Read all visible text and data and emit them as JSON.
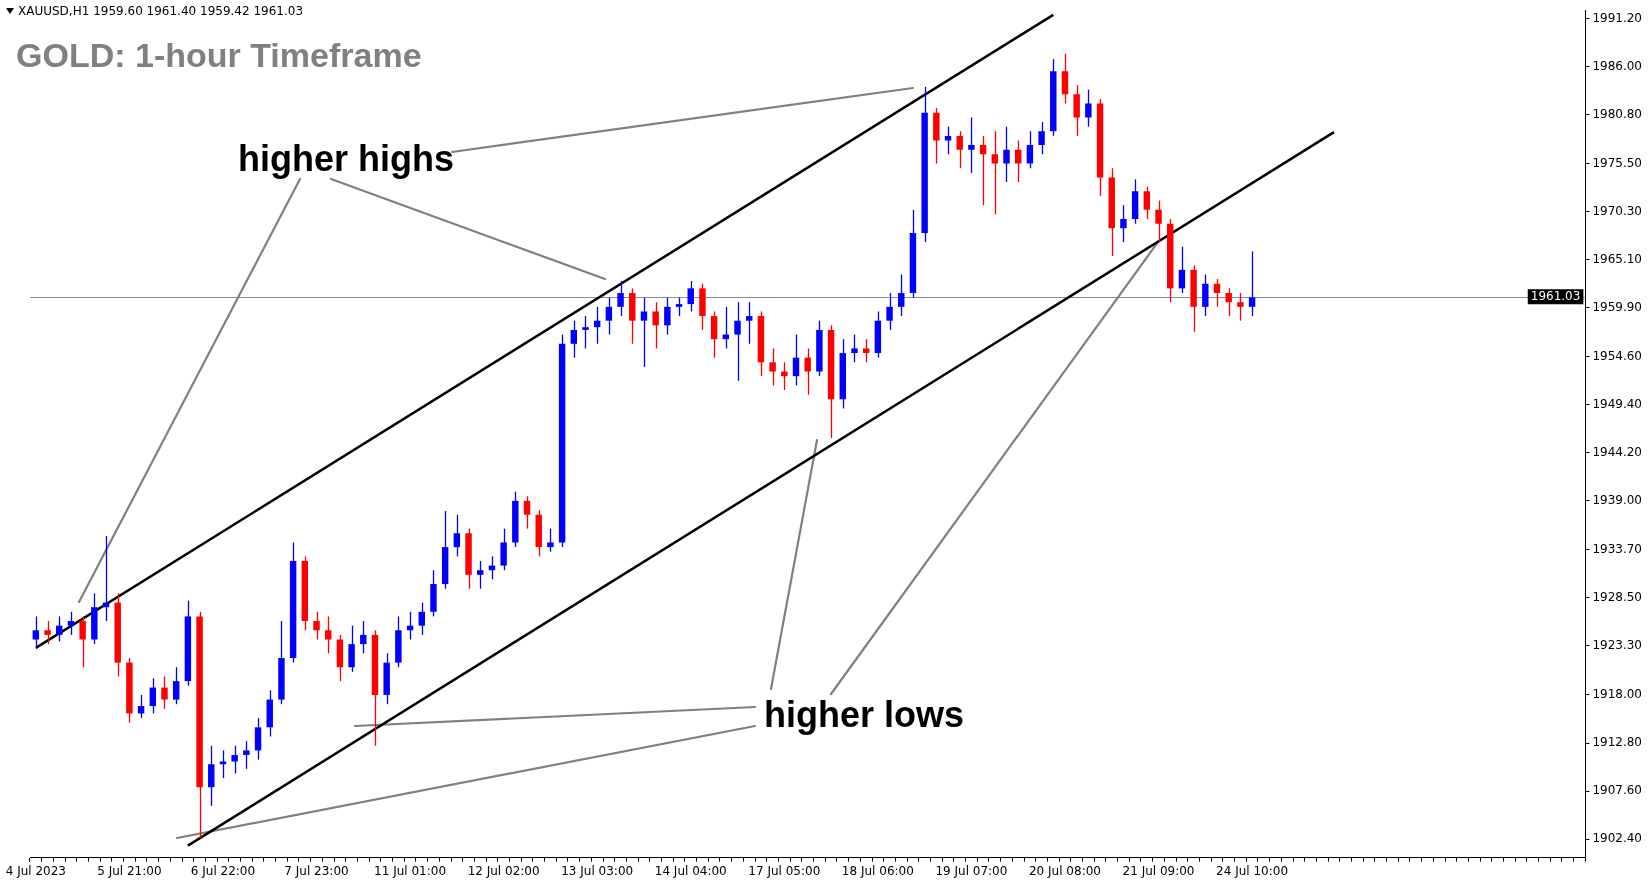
{
  "chart_data": {
    "type": "candlestick",
    "title": "GOLD: 1-hour Timeframe",
    "subtitle": "XAUUSD,H1  1959.60 1961.40 1959.42 1961.03",
    "annotations": [
      "higher highs",
      {
        "text": "higher lows",
        "x": "21 Jul 09:00",
        "y": 1967.1
      }
    ],
    "categories": [
      "4 Jul 2023",
      null,
      null,
      null,
      null,
      null,
      null,
      null,
      "5 Jul 21:00",
      null,
      null,
      null,
      null,
      null,
      null,
      null,
      "6 Jul 22:00",
      null,
      null,
      null,
      null,
      null,
      null,
      null,
      "7 Jul 23:00",
      null,
      null,
      null,
      null,
      null,
      null,
      null,
      "11 Jul 01:00",
      null,
      null,
      null,
      null,
      null,
      null,
      null,
      "12 Jul 02:00",
      null,
      null,
      null,
      null,
      null,
      null,
      null,
      "13 Jul 03:00",
      null,
      null,
      null,
      null,
      null,
      null,
      null,
      "14 Jul 04:00",
      null,
      null,
      null,
      null,
      null,
      null,
      null,
      "17 Jul 05:00",
      null,
      null,
      null,
      null,
      null,
      null,
      null,
      "18 Jul 06:00",
      null,
      null,
      null,
      null,
      null,
      null,
      null,
      "19 Jul 07:00",
      null,
      null,
      null,
      null,
      null,
      null,
      null,
      "20 Jul 08:00",
      null,
      null,
      null,
      null,
      null,
      null,
      null,
      "21 Jul 09:00",
      null,
      null,
      null,
      null,
      null,
      null,
      null,
      "24 Jul 10:00",
      null,
      null,
      null,
      null,
      null,
      null,
      null,
      null,
      null,
      null,
      null,
      null,
      null,
      null,
      null,
      null,
      null,
      null,
      null,
      null,
      null,
      null,
      null,
      null,
      null,
      null,
      null,
      null
    ],
    "ohlc": [
      [
        1924.0,
        1926.5,
        1923.0,
        1925.0
      ],
      [
        1925.0,
        1926.0,
        1923.5,
        1924.5
      ],
      [
        1924.5,
        1926.5,
        1923.8,
        1925.5
      ],
      [
        1925.5,
        1927.0,
        1924.5,
        1926.0
      ],
      [
        1926.0,
        1926.5,
        1921.0,
        1924.0
      ],
      [
        1924.0,
        1929.0,
        1923.5,
        1927.5
      ],
      [
        1927.5,
        1935.2,
        1926.0,
        1928.0
      ],
      [
        1928.0,
        1929.0,
        1920.0,
        1921.5
      ],
      [
        1921.5,
        1922.0,
        1915.0,
        1916.0
      ],
      [
        1916.0,
        1918.0,
        1915.5,
        1916.8
      ],
      [
        1916.8,
        1919.8,
        1916.0,
        1918.8
      ],
      [
        1918.8,
        1920.0,
        1916.5,
        1917.5
      ],
      [
        1917.5,
        1921.0,
        1917.0,
        1919.5
      ],
      [
        1919.5,
        1928.2,
        1919.0,
        1926.5
      ],
      [
        1926.5,
        1927.0,
        1902.5,
        1908.0
      ],
      [
        1908.0,
        1912.5,
        1906.0,
        1910.5
      ],
      [
        1910.5,
        1912.0,
        1909.0,
        1910.8
      ],
      [
        1910.8,
        1912.5,
        1909.5,
        1911.5
      ],
      [
        1911.5,
        1913.0,
        1910.0,
        1912.0
      ],
      [
        1912.0,
        1915.5,
        1911.0,
        1914.5
      ],
      [
        1914.5,
        1918.5,
        1913.5,
        1917.5
      ],
      [
        1917.5,
        1926.0,
        1917.0,
        1922.0
      ],
      [
        1922.0,
        1934.5,
        1921.5,
        1932.5
      ],
      [
        1932.5,
        1933.0,
        1925.0,
        1926.0
      ],
      [
        1926.0,
        1927.0,
        1924.0,
        1925.0
      ],
      [
        1925.0,
        1926.5,
        1922.5,
        1924.0
      ],
      [
        1924.0,
        1924.5,
        1919.5,
        1921.0
      ],
      [
        1921.0,
        1925.5,
        1920.5,
        1923.5
      ],
      [
        1923.5,
        1926.0,
        1922.5,
        1924.5
      ],
      [
        1924.5,
        1925.0,
        1912.5,
        1918.0
      ],
      [
        1918.0,
        1922.5,
        1917.0,
        1921.5
      ],
      [
        1921.5,
        1926.5,
        1921.0,
        1925.0
      ],
      [
        1925.0,
        1927.0,
        1924.0,
        1925.5
      ],
      [
        1925.5,
        1928.0,
        1924.5,
        1927.0
      ],
      [
        1927.0,
        1931.5,
        1926.5,
        1930.0
      ],
      [
        1930.0,
        1937.9,
        1929.5,
        1934.0
      ],
      [
        1934.0,
        1937.5,
        1933.0,
        1935.5
      ],
      [
        1935.5,
        1936.0,
        1929.5,
        1931.0
      ],
      [
        1931.0,
        1932.5,
        1929.5,
        1931.5
      ],
      [
        1931.5,
        1933.0,
        1930.5,
        1932.0
      ],
      [
        1932.0,
        1936.0,
        1931.5,
        1934.5
      ],
      [
        1934.5,
        1940.0,
        1934.0,
        1939.0
      ],
      [
        1939.0,
        1939.5,
        1936.0,
        1937.5
      ],
      [
        1937.5,
        1938.0,
        1933.0,
        1934.0
      ],
      [
        1934.0,
        1936.0,
        1933.5,
        1934.5
      ],
      [
        1934.5,
        1957.0,
        1934.0,
        1956.0
      ],
      [
        1956.0,
        1958.5,
        1954.5,
        1957.5
      ],
      [
        1957.5,
        1959.0,
        1955.5,
        1957.8
      ],
      [
        1957.8,
        1960.0,
        1956.0,
        1958.5
      ],
      [
        1958.5,
        1961.0,
        1957.0,
        1960.0
      ],
      [
        1960.0,
        1962.8,
        1959.0,
        1961.5
      ],
      [
        1961.5,
        1962.0,
        1956.0,
        1958.5
      ],
      [
        1958.5,
        1961.0,
        1953.5,
        1959.5
      ],
      [
        1959.5,
        1960.5,
        1955.5,
        1958.0
      ],
      [
        1958.0,
        1961.0,
        1957.0,
        1960.0
      ],
      [
        1960.0,
        1961.0,
        1959.0,
        1960.3
      ],
      [
        1960.3,
        1962.8,
        1959.5,
        1962.0
      ],
      [
        1962.0,
        1962.5,
        1957.5,
        1959.0
      ],
      [
        1959.0,
        1959.5,
        1954.5,
        1956.5
      ],
      [
        1956.5,
        1960.0,
        1955.5,
        1957.0
      ],
      [
        1957.0,
        1960.5,
        1952.0,
        1958.5
      ],
      [
        1958.5,
        1960.5,
        1956.0,
        1959.0
      ],
      [
        1959.0,
        1959.5,
        1952.5,
        1954.0
      ],
      [
        1954.0,
        1955.5,
        1951.5,
        1953.0
      ],
      [
        1953.0,
        1954.0,
        1951.0,
        1952.5
      ],
      [
        1952.5,
        1957.0,
        1951.5,
        1954.5
      ],
      [
        1954.5,
        1955.5,
        1950.5,
        1953.0
      ],
      [
        1953.0,
        1958.5,
        1952.5,
        1957.5
      ],
      [
        1957.5,
        1958.0,
        1945.8,
        1950.0
      ],
      [
        1950.0,
        1956.5,
        1949.0,
        1955.0
      ],
      [
        1955.0,
        1957.0,
        1954.0,
        1955.5
      ],
      [
        1955.5,
        1956.5,
        1954.0,
        1955.0
      ],
      [
        1955.0,
        1959.5,
        1954.5,
        1958.5
      ],
      [
        1958.5,
        1961.5,
        1957.5,
        1960.0
      ],
      [
        1960.0,
        1963.5,
        1959.0,
        1961.5
      ],
      [
        1961.5,
        1970.5,
        1961.0,
        1968.0
      ],
      [
        1968.0,
        1983.8,
        1967.0,
        1981.0
      ],
      [
        1981.0,
        1981.5,
        1975.5,
        1978.0
      ],
      [
        1978.0,
        1979.5,
        1976.5,
        1978.5
      ],
      [
        1978.5,
        1979.0,
        1975.0,
        1977.0
      ],
      [
        1977.0,
        1980.5,
        1974.5,
        1977.5
      ],
      [
        1977.5,
        1978.5,
        1971.0,
        1976.5
      ],
      [
        1976.5,
        1979.0,
        1970.0,
        1975.5
      ],
      [
        1975.5,
        1979.5,
        1973.5,
        1977.0
      ],
      [
        1977.0,
        1978.0,
        1973.5,
        1975.5
      ],
      [
        1975.5,
        1979.0,
        1975.0,
        1977.5
      ],
      [
        1977.5,
        1980.0,
        1976.5,
        1979.0
      ],
      [
        1979.0,
        1986.8,
        1978.5,
        1985.5
      ],
      [
        1985.5,
        1987.4,
        1982.0,
        1983.0
      ],
      [
        1983.0,
        1984.0,
        1978.5,
        1980.5
      ],
      [
        1980.5,
        1983.5,
        1979.5,
        1982.0
      ],
      [
        1982.0,
        1982.5,
        1972.0,
        1974.0
      ],
      [
        1974.0,
        1975.0,
        1965.5,
        1968.5
      ],
      [
        1968.5,
        1971.0,
        1967.0,
        1969.5
      ],
      [
        1969.5,
        1973.8,
        1969.0,
        1972.5
      ],
      [
        1972.5,
        1973.0,
        1969.5,
        1970.5
      ],
      [
        1970.5,
        1971.5,
        1967.0,
        1969.0
      ],
      [
        1969.0,
        1969.5,
        1960.5,
        1962.0
      ],
      [
        1962.0,
        1966.5,
        1961.5,
        1964.0
      ],
      [
        1964.0,
        1964.5,
        1957.3,
        1960.0
      ],
      [
        1960.0,
        1963.5,
        1959.0,
        1962.5
      ],
      [
        1962.5,
        1963.0,
        1960.0,
        1961.5
      ],
      [
        1961.5,
        1962.0,
        1959.0,
        1960.5
      ],
      [
        1960.5,
        1961.5,
        1958.5,
        1960.0
      ],
      [
        1960.0,
        1966.0,
        1959.0,
        1961.03
      ],
      null,
      null,
      null,
      null,
      null,
      null,
      null,
      null,
      null,
      null,
      null,
      null,
      null,
      null,
      null,
      null,
      null,
      null,
      null,
      null,
      null,
      null,
      null,
      null,
      null,
      null,
      null,
      null
    ],
    "colors": [
      "#0000ff",
      "#ff0000",
      "#0000ff",
      "#0000ff",
      "#ff0000",
      "#0000ff",
      "#0000ff",
      "#ff0000",
      "#ff0000",
      "#0000ff",
      "#0000ff",
      "#ff0000",
      "#0000ff",
      "#0000ff",
      "#ff0000",
      "#0000ff",
      "#0000ff",
      "#0000ff",
      "#0000ff",
      "#0000ff",
      "#0000ff",
      "#0000ff",
      "#0000ff",
      "#ff0000",
      "#ff0000",
      "#ff0000",
      "#ff0000",
      "#0000ff",
      "#0000ff",
      "#ff0000",
      "#0000ff",
      "#0000ff",
      "#0000ff",
      "#0000ff",
      "#0000ff",
      "#0000ff",
      "#0000ff",
      "#ff0000",
      "#0000ff",
      "#0000ff",
      "#0000ff",
      "#0000ff",
      "#ff0000",
      "#ff0000",
      "#0000ff",
      "#0000ff",
      "#0000ff",
      "#0000ff",
      "#0000ff",
      "#0000ff",
      "#0000ff",
      "#ff0000",
      "#0000ff",
      "#ff0000",
      "#0000ff",
      "#0000ff",
      "#0000ff",
      "#ff0000",
      "#ff0000",
      "#0000ff",
      "#0000ff",
      "#0000ff",
      "#ff0000",
      "#ff0000",
      "#ff0000",
      "#0000ff",
      "#ff0000",
      "#0000ff",
      "#ff0000",
      "#0000ff",
      "#0000ff",
      "#ff0000",
      "#0000ff",
      "#0000ff",
      "#0000ff",
      "#0000ff",
      "#0000ff",
      "#ff0000",
      "#0000ff",
      "#ff0000",
      "#0000ff",
      "#ff0000",
      "#ff0000",
      "#0000ff",
      "#ff0000",
      "#0000ff",
      "#0000ff",
      "#0000ff",
      "#ff0000",
      "#ff0000",
      "#0000ff",
      "#ff0000",
      "#ff0000",
      "#0000ff",
      "#0000ff",
      "#ff0000",
      "#ff0000",
      "#ff0000",
      "#0000ff",
      "#ff0000",
      "#0000ff",
      "#ff0000",
      "#ff0000",
      "#ff0000",
      "#0000ff",
      null,
      null,
      null,
      null,
      null,
      null,
      null,
      null,
      null,
      null,
      null,
      null,
      null,
      null,
      null,
      null,
      null,
      null,
      null,
      null,
      null,
      null,
      null,
      null,
      null,
      null,
      null,
      null
    ],
    "series": [
      {
        "type": "line",
        "color": "#000000",
        "values": [
          1923.1,
          null,
          null,
          null,
          null,
          null,
          null,
          null,
          null,
          null,
          null,
          null,
          null,
          null,
          null,
          null,
          null,
          null,
          null,
          null,
          null,
          null,
          null,
          null,
          null,
          null,
          null,
          null,
          null,
          null,
          null,
          null,
          null,
          null,
          null,
          null,
          null,
          null,
          null,
          null,
          null,
          null,
          null,
          null,
          null,
          null,
          null,
          null,
          null,
          null,
          null,
          null,
          null,
          null,
          null,
          null,
          null,
          null,
          null,
          null,
          null,
          null,
          null,
          null,
          null,
          null,
          null,
          null,
          null,
          null,
          null,
          null,
          null,
          null,
          null,
          null,
          null,
          null,
          null,
          null,
          null,
          null,
          null,
          null,
          null,
          null,
          null,
          1991.6,
          null,
          null,
          null,
          null,
          null,
          null,
          null,
          null,
          null,
          null,
          null,
          null,
          null,
          null,
          null,
          null,
          null,
          null,
          null,
          null,
          null,
          null,
          null,
          null,
          null,
          null,
          null,
          null,
          null,
          null,
          null,
          null,
          null,
          null,
          null,
          null,
          null,
          null,
          null,
          null,
          null,
          null,
          null,
          null,
          null
        ]
      },
      {
        "type": "line",
        "color": "#000000",
        "values": [
          null,
          null,
          null,
          null,
          null,
          null,
          null,
          null,
          null,
          null,
          null,
          null,
          null,
          1901.7,
          null,
          null,
          null,
          null,
          null,
          null,
          null,
          null,
          null,
          null,
          null,
          null,
          null,
          null,
          null,
          null,
          null,
          null,
          null,
          null,
          null,
          null,
          null,
          null,
          null,
          null,
          null,
          null,
          null,
          null,
          null,
          null,
          null,
          null,
          null,
          null,
          null,
          null,
          null,
          null,
          null,
          null,
          null,
          null,
          null,
          null,
          null,
          null,
          null,
          null,
          null,
          null,
          null,
          null,
          null,
          null,
          null,
          null,
          null,
          null,
          null,
          null,
          null,
          null,
          null,
          null,
          null,
          null,
          null,
          null,
          null,
          null,
          null,
          null,
          null,
          null,
          null,
          null,
          null,
          null,
          null,
          null,
          null,
          null,
          null,
          null,
          null,
          null,
          null,
          null,
          null,
          null,
          null,
          null,
          null,
          null,
          null,
          1978.9,
          null,
          null,
          null,
          null,
          null,
          null,
          null,
          null,
          null,
          null,
          null,
          null,
          null,
          null,
          null,
          null,
          null,
          null,
          null,
          null,
          null
        ]
      }
    ],
    "ylim": [
      1900.4,
      1992.1
    ],
    "yticks": [
      {
        "value": 1991.2,
        "label": "1991.20"
      },
      {
        "value": 1986.0,
        "label": "1986.00"
      },
      {
        "value": 1980.8,
        "label": "1980.80"
      },
      {
        "value": 1975.5,
        "label": "1975.50"
      },
      {
        "value": 1970.3,
        "label": "1970.30"
      },
      {
        "value": 1965.1,
        "label": "1965.10"
      },
      {
        "value": 1959.9,
        "label": "1959.90"
      },
      {
        "value": 1954.6,
        "label": "1954.60"
      },
      {
        "value": 1949.4,
        "label": "1949.40"
      },
      {
        "value": 1944.2,
        "label": "1944.20"
      },
      {
        "value": 1939.0,
        "label": "1939.00"
      },
      {
        "value": 1933.7,
        "label": "1933.70"
      },
      {
        "value": 1928.5,
        "label": "1928.50"
      },
      {
        "value": 1923.3,
        "label": "1923.30"
      },
      {
        "value": 1918.0,
        "label": "1918.00"
      },
      {
        "value": 1912.8,
        "label": "1912.80"
      },
      {
        "value": 1907.6,
        "label": "1907.60"
      },
      {
        "value": 1902.4,
        "label": "1902.40"
      }
    ],
    "ref_lines": [
      {
        "axis": "y",
        "value": 1961.03,
        "label": "1961.03",
        "color": "#8090a0"
      }
    ]
  }
}
